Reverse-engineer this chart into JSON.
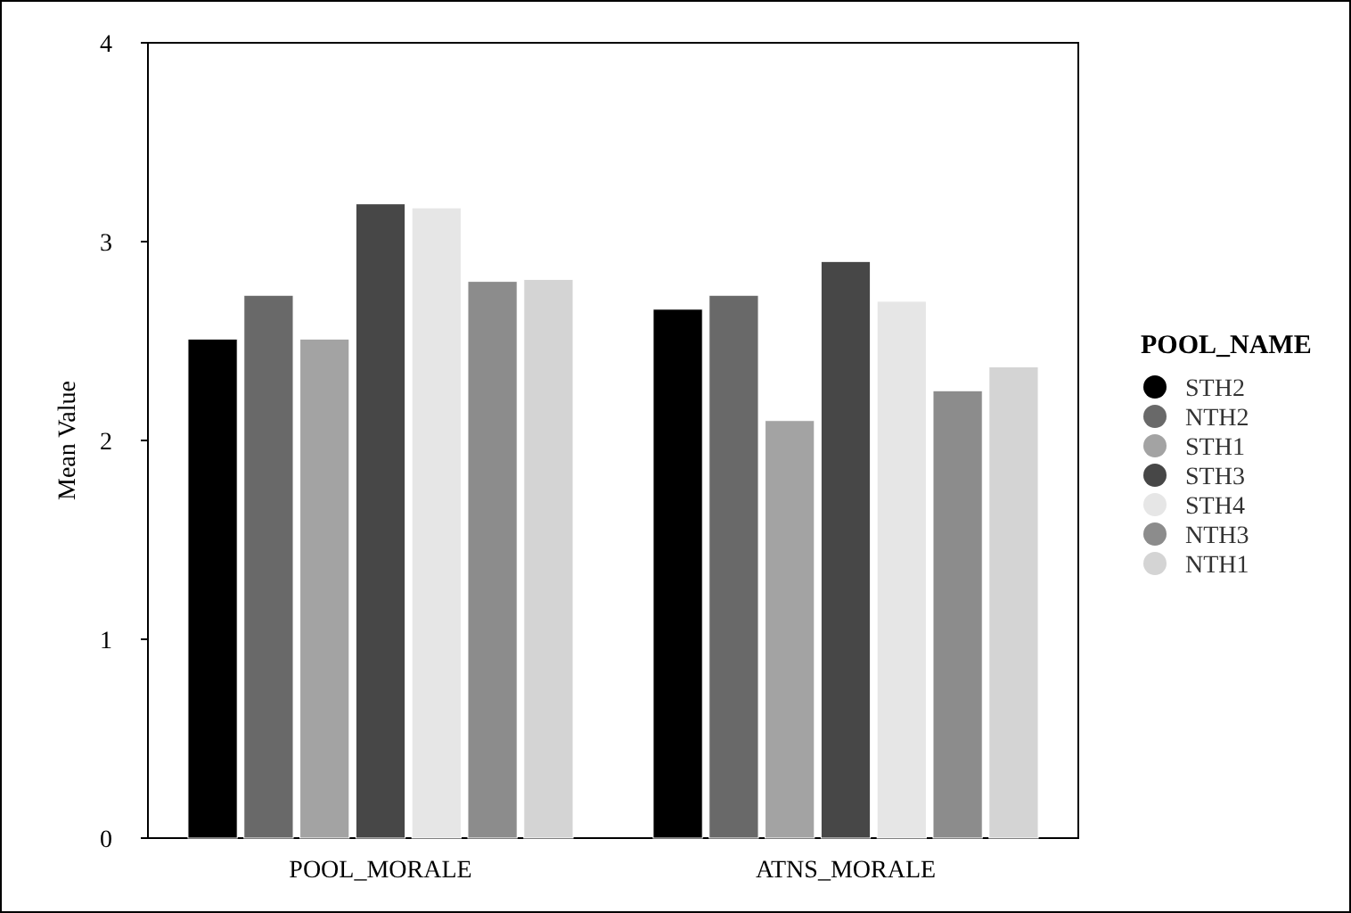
{
  "chart_data": {
    "type": "bar",
    "ylabel": "Mean Value",
    "legend_title": "POOL_NAME",
    "categories": [
      "POOL_MORALE",
      "ATNS_MORALE"
    ],
    "series": [
      {
        "name": "STH2",
        "color": "#000000",
        "values": [
          2.51,
          2.66
        ]
      },
      {
        "name": "NTH2",
        "color": "#696969",
        "values": [
          2.73,
          2.73
        ]
      },
      {
        "name": "STH1",
        "color": "#a3a3a3",
        "values": [
          2.51,
          2.1
        ]
      },
      {
        "name": "STH3",
        "color": "#474747",
        "values": [
          3.19,
          2.9
        ]
      },
      {
        "name": "STH4",
        "color": "#e6e6e6",
        "values": [
          3.17,
          2.7
        ]
      },
      {
        "name": "NTH3",
        "color": "#8c8c8c",
        "values": [
          2.8,
          2.25
        ]
      },
      {
        "name": "NTH1",
        "color": "#d4d4d4",
        "values": [
          2.81,
          2.37
        ]
      }
    ],
    "ylim": [
      0,
      4
    ],
    "yticks": [
      0,
      1,
      2,
      3,
      4
    ],
    "grid": false,
    "legend": "right"
  }
}
